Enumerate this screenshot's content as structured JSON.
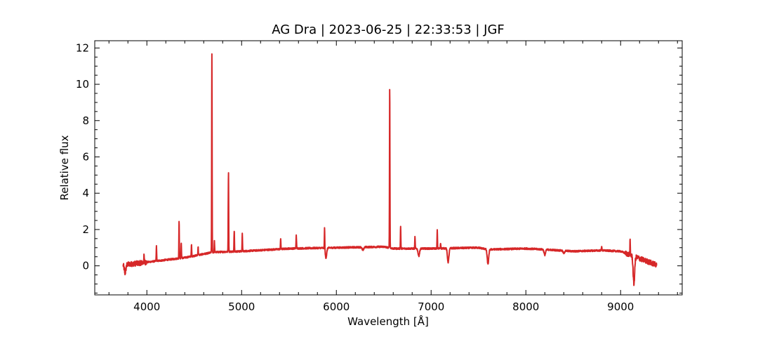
{
  "chart_data": {
    "type": "line",
    "title": "AG Dra | 2023-06-25 | 22:33:53 | JGF",
    "xlabel": "Wavelength [Å]",
    "ylabel": "Relative flux",
    "xlim": [
      3450,
      9650
    ],
    "ylim": [
      -1.6,
      12.4
    ],
    "x_ticks": [
      4000,
      5000,
      6000,
      7000,
      8000,
      9000
    ],
    "y_ticks": [
      0,
      2,
      4,
      6,
      8,
      10,
      12
    ],
    "x_minor_step": 200,
    "y_minor_step": 0.5,
    "grid": false,
    "legend": "none",
    "series": [
      {
        "color": "#d62728",
        "x_range": [
          3750,
          9380
        ],
        "continuum": [
          [
            3750,
            0.05
          ],
          [
            4000,
            0.2
          ],
          [
            4400,
            0.45
          ],
          [
            4700,
            0.75
          ],
          [
            5000,
            0.8
          ],
          [
            5500,
            0.95
          ],
          [
            6000,
            1.0
          ],
          [
            6500,
            1.05
          ],
          [
            6600,
            0.95
          ],
          [
            7000,
            0.95
          ],
          [
            7500,
            1.0
          ],
          [
            7600,
            0.9
          ],
          [
            8000,
            0.95
          ],
          [
            8200,
            0.9
          ],
          [
            8500,
            0.8
          ],
          [
            8800,
            0.85
          ],
          [
            9000,
            0.8
          ],
          [
            9100,
            0.6
          ],
          [
            9380,
            0.05
          ]
        ],
        "emission_lines": [
          [
            3970,
            0.55
          ],
          [
            4101,
            1.1
          ],
          [
            4340,
            2.5
          ],
          [
            4363,
            1.3
          ],
          [
            4471,
            1.15
          ],
          [
            4541,
            1.05
          ],
          [
            4686,
            11.7
          ],
          [
            4713,
            1.35
          ],
          [
            4861,
            5.2
          ],
          [
            4922,
            1.95
          ],
          [
            5007,
            1.8
          ],
          [
            5412,
            1.5
          ],
          [
            5577,
            1.7
          ],
          [
            5876,
            2.2
          ],
          [
            6563,
            9.9
          ],
          [
            6678,
            2.2
          ],
          [
            6830,
            1.6
          ],
          [
            7065,
            1.95
          ],
          [
            7100,
            1.25
          ],
          [
            8800,
            1.1
          ],
          [
            9100,
            1.35
          ]
        ],
        "absorption_features": [
          [
            3770,
            -0.4
          ],
          [
            5890,
            0.45
          ],
          [
            6280,
            0.85
          ],
          [
            6870,
            0.55
          ],
          [
            7180,
            0.2
          ],
          [
            7600,
            0.1
          ],
          [
            8200,
            0.6
          ],
          [
            8400,
            0.7
          ],
          [
            9140,
            -1.0
          ]
        ]
      }
    ]
  }
}
